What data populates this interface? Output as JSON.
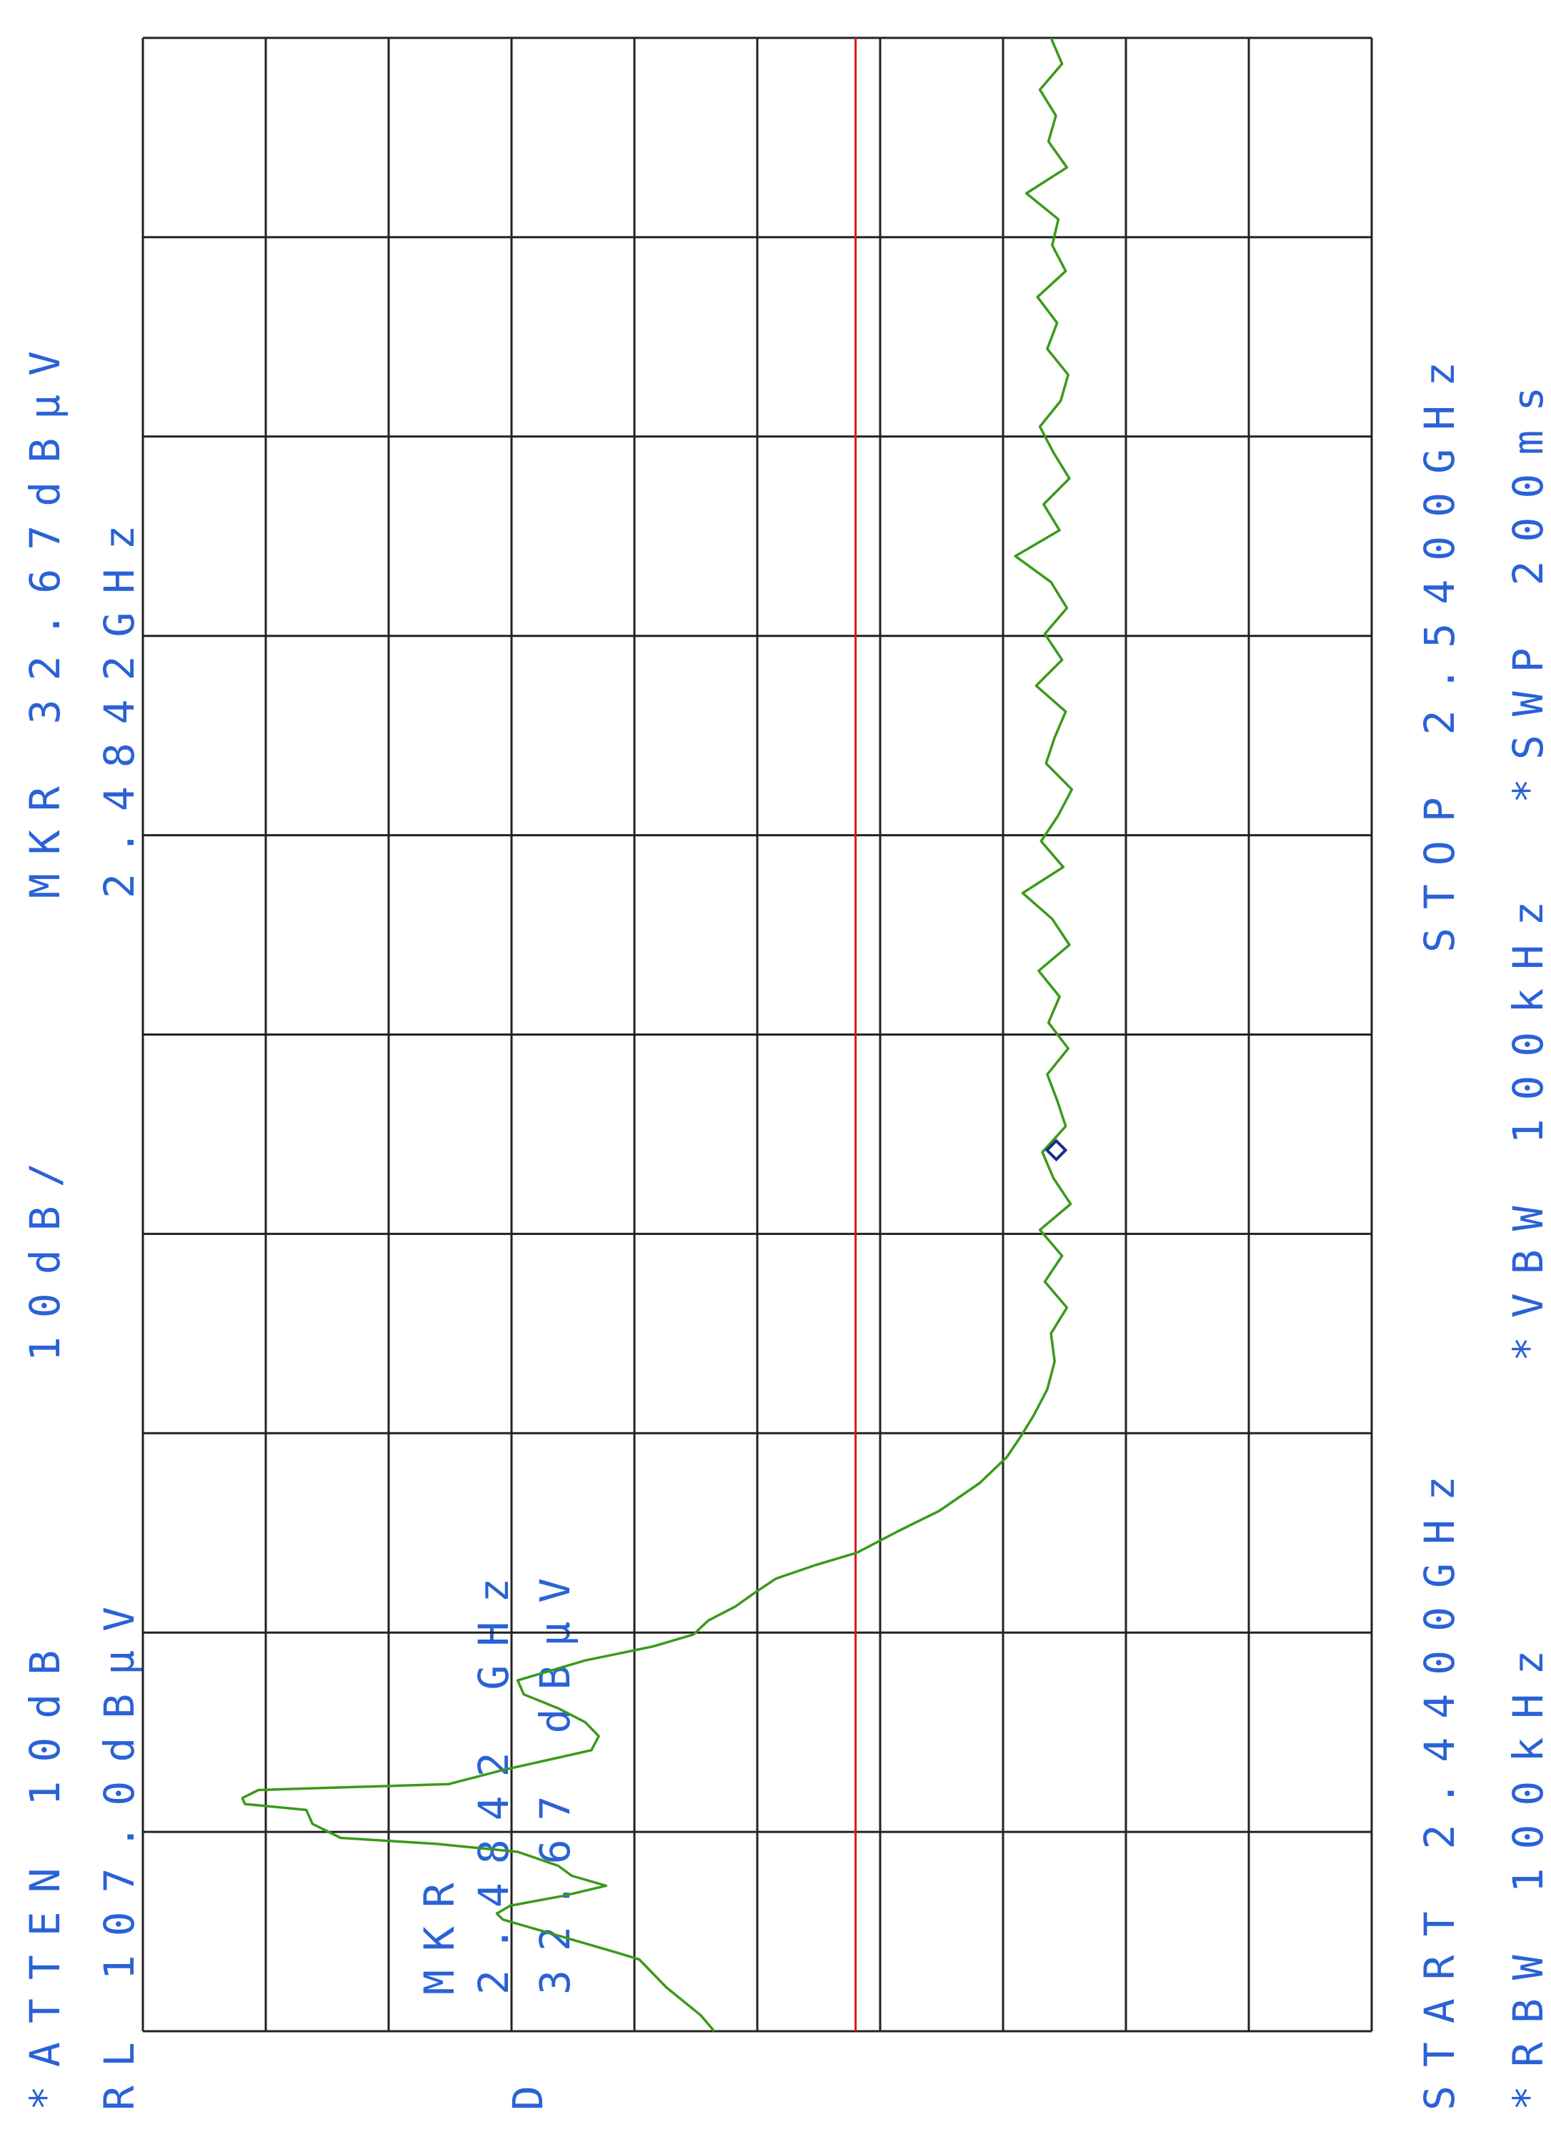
{
  "chart_data": {
    "type": "line",
    "attenuation": "*ATTEN 10dB",
    "reference_level": "RL 107.0dBµV",
    "scale": "10dB/",
    "marker_readout": "MKR 32.67dBµV",
    "marker_frequency": "2.4842GHz",
    "start": "START 2.4400GHz",
    "stop": "STOP 2.5400GHz",
    "rbw": "*RBW 100kHz",
    "vbw": "*VBW 100kHz",
    "sweep": "*SWP 200ms",
    "marker_label": "MKR",
    "marker_box_frequency": "2.4842 GHz",
    "marker_box_amplitude": "32.67 dBµV",
    "detector": "D",
    "xlim": [
      2.44,
      2.54
    ],
    "ylim": [
      7,
      107
    ],
    "x_divisions": 10,
    "y_divisions": 10,
    "grid": true,
    "color": "#3a9a1a",
    "limit_line": 49,
    "limit_color": "#d81818",
    "marker": {
      "x": 2.4842,
      "y": 32.67
    },
    "x": [
      2.44,
      2.4408,
      2.4422,
      2.4436,
      2.4439,
      2.4446,
      2.4456,
      2.4459,
      2.4463,
      2.4468,
      2.4473,
      2.4478,
      2.4483,
      2.449,
      2.4494,
      2.4497,
      2.4504,
      2.4511,
      2.4514,
      2.4517,
      2.4521,
      2.4524,
      2.4531,
      2.4541,
      2.4548,
      2.4555,
      2.4562,
      2.4569,
      2.4576,
      2.4586,
      2.4593,
      2.4599,
      2.4606,
      2.4613,
      2.462,
      2.4627,
      2.4634,
      2.464,
      2.4651,
      2.4661,
      2.4675,
      2.4688,
      2.4698,
      2.4709,
      2.4722,
      2.4736,
      2.475,
      2.4763,
      2.4776,
      2.4789,
      2.4802,
      2.4815,
      2.4828,
      2.4841,
      2.4854,
      2.4867,
      2.488,
      2.4893,
      2.4906,
      2.4919,
      2.4932,
      2.4945,
      2.4958,
      2.4971,
      2.4984,
      2.4997,
      2.501,
      2.5023,
      2.5036,
      2.5049,
      2.5062,
      2.5075,
      2.5088,
      2.5101,
      2.5114,
      2.5127,
      2.514,
      2.5153,
      2.5166,
      2.5179,
      2.5192,
      2.5205,
      2.5218,
      2.5231,
      2.5244,
      2.5257,
      2.527,
      2.5283,
      2.5296,
      2.5309,
      2.5322,
      2.5335,
      2.5348,
      2.5361,
      2.5374,
      2.5387,
      2.54
    ],
    "values": [
      60.5,
      61.6,
      64.4,
      66.6,
      68.2,
      72.1,
      77.7,
      78.2,
      77.1,
      72.7,
      69.3,
      72.1,
      73.2,
      76.5,
      83.2,
      90.9,
      93.2,
      93.7,
      98.7,
      98.9,
      97.6,
      82.1,
      77.7,
      70.5,
      69.9,
      71.0,
      73.2,
      76.0,
      76.5,
      71.0,
      65.5,
      62.2,
      61.0,
      58.8,
      57.2,
      55.5,
      52.2,
      48.9,
      45.5,
      42.2,
      38.9,
      36.7,
      35.6,
      34.5,
      33.4,
      32.8,
      33.1,
      31.8,
      33.6,
      32.2,
      34.0,
      31.5,
      32.9,
      33.8,
      31.9,
      32.6,
      33.4,
      31.7,
      33.3,
      32.4,
      34.1,
      31.6,
      33.0,
      35.4,
      32.1,
      33.9,
      32.5,
      31.4,
      33.5,
      32.8,
      31.9,
      34.3,
      32.2,
      33.6,
      31.8,
      33.1,
      36.0,
      32.4,
      33.7,
      31.6,
      32.9,
      34.0,
      32.3,
      31.7,
      33.4,
      32.6,
      34.2,
      31.9,
      33.0,
      32.5,
      35.1,
      31.8,
      33.3,
      32.7,
      34.0,
      32.2,
      33.1
    ]
  }
}
